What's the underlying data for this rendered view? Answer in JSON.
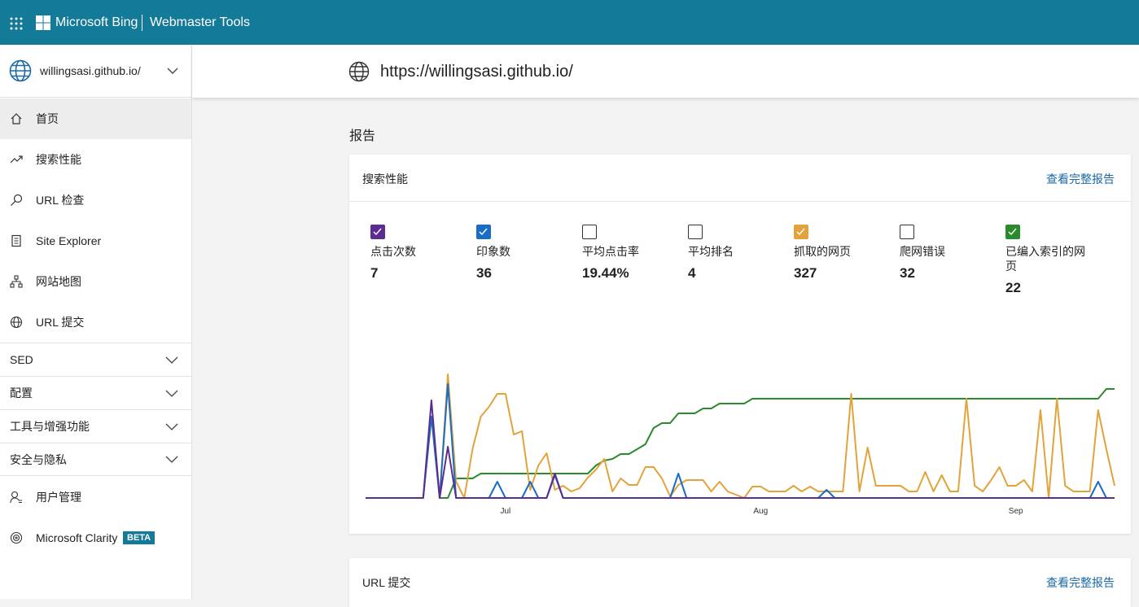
{
  "header": {
    "brand": "Microsoft Bing",
    "product": "Webmaster Tools"
  },
  "sidebar": {
    "site": "willingsasi.github.io/",
    "nav": [
      "首页",
      "搜索性能",
      "URL 检查",
      "Site Explorer",
      "网站地图",
      "URL 提交"
    ],
    "groups": [
      "SED",
      "配置",
      "工具与增强功能",
      "安全与隐私"
    ],
    "bottom": [
      {
        "label": "用户管理"
      },
      {
        "label": "Microsoft Clarity",
        "badge": "BETA"
      }
    ]
  },
  "main": {
    "url": "https://willingsasi.github.io/",
    "section_title": "报告",
    "cards": [
      {
        "title": "搜索性能",
        "link": "查看完整报告"
      },
      {
        "title": "URL 提交",
        "link": "查看完整报告"
      }
    ]
  },
  "chart_data": {
    "type": "line",
    "categories": [
      null,
      null,
      null,
      null,
      null,
      null,
      null,
      null,
      null,
      null,
      null,
      null,
      null,
      null,
      null,
      null,
      null,
      "Jul",
      null,
      null,
      null,
      null,
      null,
      null,
      null,
      null,
      null,
      null,
      null,
      null,
      null,
      null,
      null,
      null,
      null,
      null,
      null,
      null,
      null,
      null,
      null,
      null,
      null,
      null,
      null,
      null,
      null,
      null,
      "Aug",
      null,
      null,
      null,
      null,
      null,
      null,
      null,
      null,
      null,
      null,
      null,
      null,
      null,
      null,
      null,
      null,
      null,
      null,
      null,
      null,
      null,
      null,
      null,
      null,
      null,
      null,
      null,
      null,
      null,
      null,
      "Sep",
      null,
      null,
      null,
      null,
      null,
      null,
      null,
      null,
      null,
      null,
      null,
      null
    ],
    "series": [
      {
        "name": "点击次数",
        "total": "7",
        "checked": true,
        "color": "#5c2d91",
        "values": [
          0,
          0,
          0,
          0,
          0,
          0,
          0,
          0,
          120,
          0,
          63,
          0,
          0,
          0,
          0,
          0,
          0,
          0,
          0,
          0,
          0,
          0,
          0,
          30,
          0,
          0,
          0,
          0,
          0,
          0,
          0,
          0,
          0,
          0,
          0,
          0,
          0,
          0,
          0,
          0,
          0,
          0,
          0,
          0,
          0,
          0,
          0,
          0,
          0,
          0,
          0,
          0,
          0,
          0,
          0,
          0,
          0,
          0,
          0,
          0,
          0,
          0,
          0,
          0,
          0,
          0,
          0,
          0,
          0,
          0,
          0,
          0,
          0,
          0,
          0,
          0,
          0,
          0,
          0,
          0,
          0,
          0,
          0,
          0,
          0,
          0,
          0,
          0,
          0,
          0,
          0,
          0
        ]
      },
      {
        "name": "印象数",
        "total": "36",
        "checked": true,
        "color": "#1a6cc4",
        "values": [
          0,
          0,
          0,
          0,
          0,
          0,
          0,
          0,
          100,
          0,
          140,
          0,
          0,
          0,
          0,
          0,
          20,
          0,
          0,
          0,
          20,
          0,
          0,
          28,
          0,
          0,
          0,
          0,
          0,
          0,
          0,
          0,
          0,
          0,
          0,
          0,
          0,
          0,
          30,
          0,
          0,
          0,
          0,
          0,
          0,
          0,
          0,
          0,
          0,
          0,
          0,
          0,
          0,
          0,
          0,
          0,
          10,
          0,
          0,
          0,
          0,
          0,
          0,
          0,
          0,
          0,
          0,
          0,
          0,
          0,
          0,
          0,
          0,
          0,
          0,
          0,
          0,
          0,
          0,
          0,
          0,
          0,
          0,
          0,
          0,
          0,
          0,
          0,
          0,
          20,
          0,
          0
        ]
      },
      {
        "name": "平均点击率",
        "total": "19.44%",
        "checked": false
      },
      {
        "name": "平均排名",
        "total": "4",
        "checked": false
      },
      {
        "name": "抓取的网页",
        "total": "327",
        "checked": true,
        "color": "#e3a33b",
        "values": [
          0,
          0,
          0,
          0,
          0,
          0,
          0,
          0,
          100,
          0,
          152,
          20,
          0,
          60,
          100,
          112,
          128,
          128,
          78,
          82,
          10,
          40,
          55,
          10,
          15,
          8,
          12,
          25,
          35,
          48,
          8,
          24,
          16,
          16,
          38,
          38,
          24,
          2,
          16,
          22,
          22,
          22,
          8,
          20,
          8,
          4,
          0,
          14,
          14,
          8,
          8,
          8,
          15,
          8,
          14,
          8,
          8,
          8,
          8,
          128,
          8,
          62,
          15,
          15,
          15,
          15,
          8,
          8,
          32,
          8,
          28,
          8,
          8,
          122,
          15,
          8,
          22,
          38,
          15,
          15,
          22,
          8,
          108,
          0,
          122,
          15,
          8,
          8,
          8,
          108,
          60,
          15
        ]
      },
      {
        "name": "爬网错误",
        "total": "32",
        "checked": false
      },
      {
        "name": "已编入索引的网页",
        "total": "22",
        "checked": true,
        "color": "#2b8a2b",
        "values": [
          null,
          null,
          null,
          null,
          null,
          null,
          null,
          null,
          null,
          0,
          0,
          24,
          24,
          24,
          30,
          30,
          30,
          30,
          30,
          30,
          30,
          30,
          30,
          30,
          30,
          30,
          30,
          30,
          40,
          46,
          48,
          54,
          54,
          60,
          66,
          86,
          92,
          92,
          104,
          104,
          104,
          110,
          110,
          116,
          116,
          116,
          116,
          122,
          122,
          122,
          122,
          122,
          122,
          122,
          122,
          122,
          122,
          122,
          122,
          122,
          122,
          122,
          122,
          122,
          122,
          122,
          122,
          122,
          122,
          122,
          122,
          122,
          122,
          122,
          122,
          122,
          122,
          122,
          122,
          122,
          122,
          122,
          122,
          122,
          122,
          122,
          122,
          122,
          122,
          122,
          134,
          134
        ]
      }
    ]
  }
}
